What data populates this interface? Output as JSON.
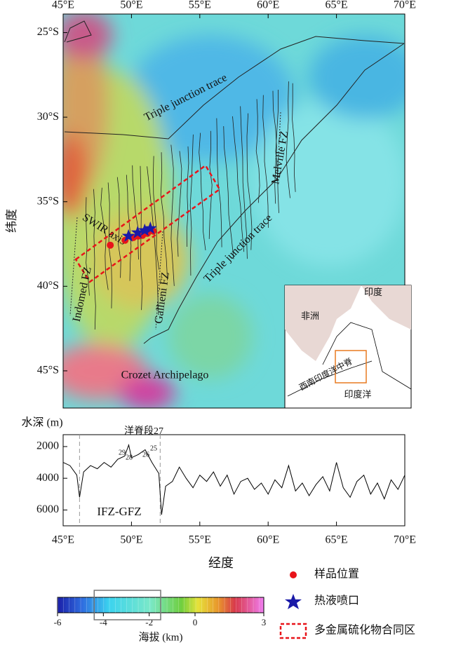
{
  "map": {
    "lonlim": [
      45,
      70
    ],
    "latlim": [
      -23.9,
      -47.2
    ],
    "lon_ticks": [
      {
        "value": 45,
        "label": "45°E"
      },
      {
        "value": 50,
        "label": "50°E"
      },
      {
        "value": 55,
        "label": "55°E"
      },
      {
        "value": 60,
        "label": "60°E"
      },
      {
        "value": 65,
        "label": "65°E"
      },
      {
        "value": 70,
        "label": "70°E"
      }
    ],
    "lat_ticks": [
      {
        "value": -25,
        "label": "25°S"
      },
      {
        "value": -30,
        "label": "30°S"
      },
      {
        "value": -35,
        "label": "35°S"
      },
      {
        "value": -40,
        "label": "40°S"
      },
      {
        "value": -45,
        "label": "45°S"
      }
    ],
    "y_label": "纬度",
    "labels": {
      "trace_north": "Triple junction trace",
      "trace_south": "Triple junction trace",
      "melville": "Melville FZ",
      "swir": "SWIR axis",
      "indomed": "Indomed FZ",
      "gallieni": "Gallieni FZ",
      "crozet": "Crozet Archipelago"
    },
    "samples": {
      "color": "#e8141a",
      "lon": [
        48.45,
        49.53,
        50.14,
        50.5,
        50.81,
        51.17,
        51.58
      ],
      "lat": [
        -37.57,
        -37.28,
        -37.12,
        -37.03,
        -36.99,
        -36.87,
        -36.74
      ]
    },
    "vents": {
      "color": "#1a1aa8",
      "lon": [
        49.78,
        50.45,
        50.97,
        51.38
      ],
      "lat": [
        -37.03,
        -36.83,
        -36.7,
        -36.58
      ]
    },
    "inset": {
      "india": "印度",
      "africa": "非洲",
      "indian_ocean": "印度洋",
      "swir": "西南印度洋中脊"
    }
  },
  "profile": {
    "type": "line",
    "y_label": "水深 (m)",
    "segment_label": "洋脊段27",
    "segment_numbers": [
      "25",
      "26",
      "28",
      "29"
    ],
    "region_label": "IFZ-GFZ",
    "x_label": "经度",
    "xlim": [
      45,
      70
    ],
    "ylim": [
      1250,
      7000
    ],
    "yticks": [
      2000,
      4000,
      6000
    ],
    "xticks": [
      {
        "value": 45,
        "label": "45°E"
      },
      {
        "value": 50,
        "label": "50°E"
      },
      {
        "value": 55,
        "label": "55°E"
      },
      {
        "value": 60,
        "label": "60°E"
      },
      {
        "value": 65,
        "label": "65°E"
      },
      {
        "value": 70,
        "label": "70°E"
      }
    ],
    "bounds": [
      46.2,
      52.1
    ],
    "x": [
      45,
      45.5,
      46,
      46.2,
      46.5,
      47,
      47.5,
      48,
      48.5,
      49,
      49.5,
      49.8,
      50,
      50.5,
      51,
      51.5,
      52,
      52.2,
      52.5,
      53,
      53.5,
      54,
      54.5,
      55,
      55.5,
      56,
      56.5,
      57,
      57.5,
      58,
      58.5,
      59,
      59.5,
      60,
      60.5,
      61,
      61.5,
      62,
      62.5,
      63,
      63.5,
      64,
      64.5,
      65,
      65.5,
      66,
      66.5,
      67,
      67.5,
      68,
      68.5,
      69,
      69.5,
      70
    ],
    "values": [
      3000,
      3200,
      3800,
      5200,
      3600,
      3200,
      3400,
      3000,
      3300,
      2800,
      2600,
      1900,
      2700,
      2500,
      2200,
      3000,
      3700,
      6300,
      4500,
      4200,
      3300,
      4000,
      4600,
      3800,
      4200,
      3600,
      4500,
      3800,
      5000,
      4200,
      4000,
      4700,
      4300,
      5000,
      4100,
      4600,
      3200,
      4800,
      4300,
      5100,
      4400,
      3900,
      4800,
      3000,
      4600,
      5200,
      4200,
      3800,
      5000,
      4300,
      5300,
      4100,
      4700,
      3800
    ]
  },
  "legend": {
    "samples": "样品位置",
    "vents": "热液喷口",
    "contract": "多金属硫化物合同区"
  },
  "colorbar": {
    "lim": [
      -6,
      3
    ],
    "ticks": [
      -6,
      -4,
      -2,
      0,
      3
    ],
    "label": "海拔 (km)",
    "highlight": [
      -4.4,
      -1.5
    ]
  }
}
